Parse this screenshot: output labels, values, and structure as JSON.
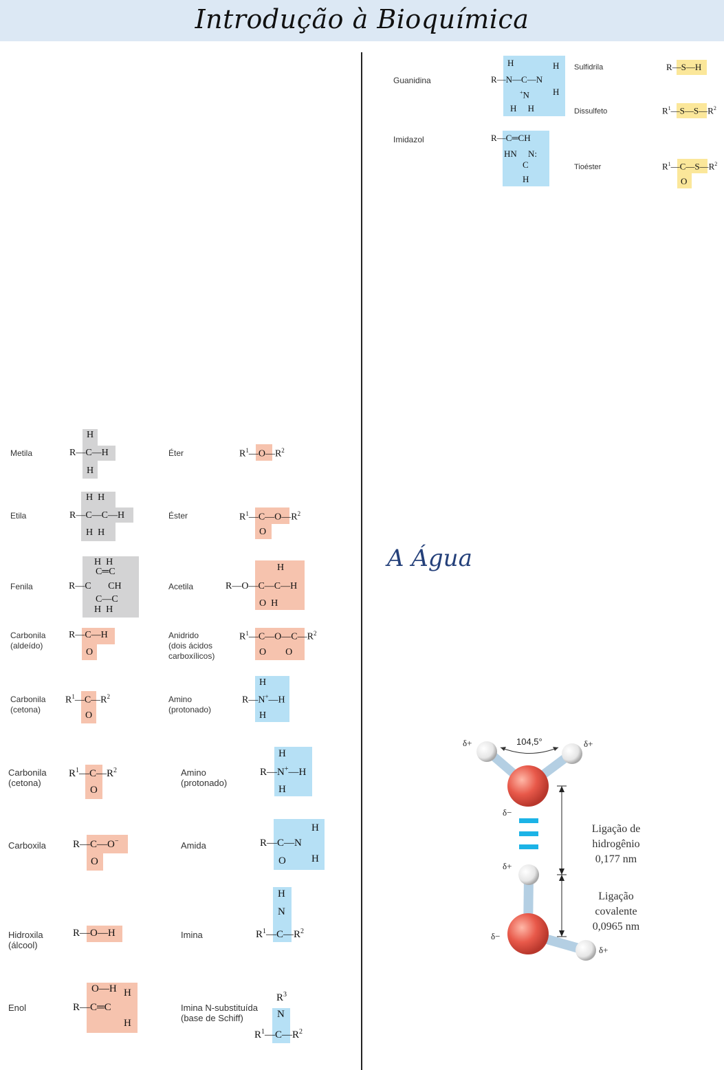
{
  "page_title": "Introdução à Bioquímica",
  "section_title": "A Água",
  "groups_left": {
    "metila": "Metila",
    "etila": "Etila",
    "fenila": "Fenila",
    "carbonila_aldeido": "Carbonila\n(aldeído)",
    "carbonila_cetona": "Carbonila\n(cetona)",
    "eter": "Éter",
    "ester": "Éster",
    "acetila": "Acetila",
    "anidrido": "Anidrido\n(dois ácidos\ncarboxílicos)",
    "amino_protonado": "Amino\n(protonado)"
  },
  "groups_lower": {
    "carbonila_cetona": "Carbonila\n(cetona)",
    "carboxila": "Carboxila",
    "hidroxila": "Hidroxila\n(álcool)",
    "enol": "Enol",
    "amino_protonado": "Amino\n(protonado)",
    "amida": "Amida",
    "imina": "Imina",
    "imina_n": "Imina N-substituída\n(base de Schiff)"
  },
  "groups_right": {
    "guanidina": "Guanidina",
    "imidazol": "Imidazol",
    "sulfidrila": "Sulfidrila",
    "dissulfeto": "Dissulfeto",
    "tioester": "Tioéster"
  },
  "water_figure": {
    "angle": "104,5°",
    "delta_plus": "δ+",
    "delta_minus": "δ−",
    "hydrogen_bond_label": [
      "Ligação de",
      "hidrogênio",
      "0,177 nm"
    ],
    "covalent_bond_label": [
      "Ligação",
      "covalente",
      "0,0965 nm"
    ]
  },
  "colors": {
    "header_bg": "#dce8f4",
    "gray_group": "#d3d3d4",
    "pink_group": "#f6c3ae",
    "blue_group": "#b6e0f5",
    "yellow_group": "#fbe79a",
    "title_blue": "#24407a",
    "hbond_cyan": "#1cb3e6",
    "oxygen_red": "#e8594a"
  }
}
